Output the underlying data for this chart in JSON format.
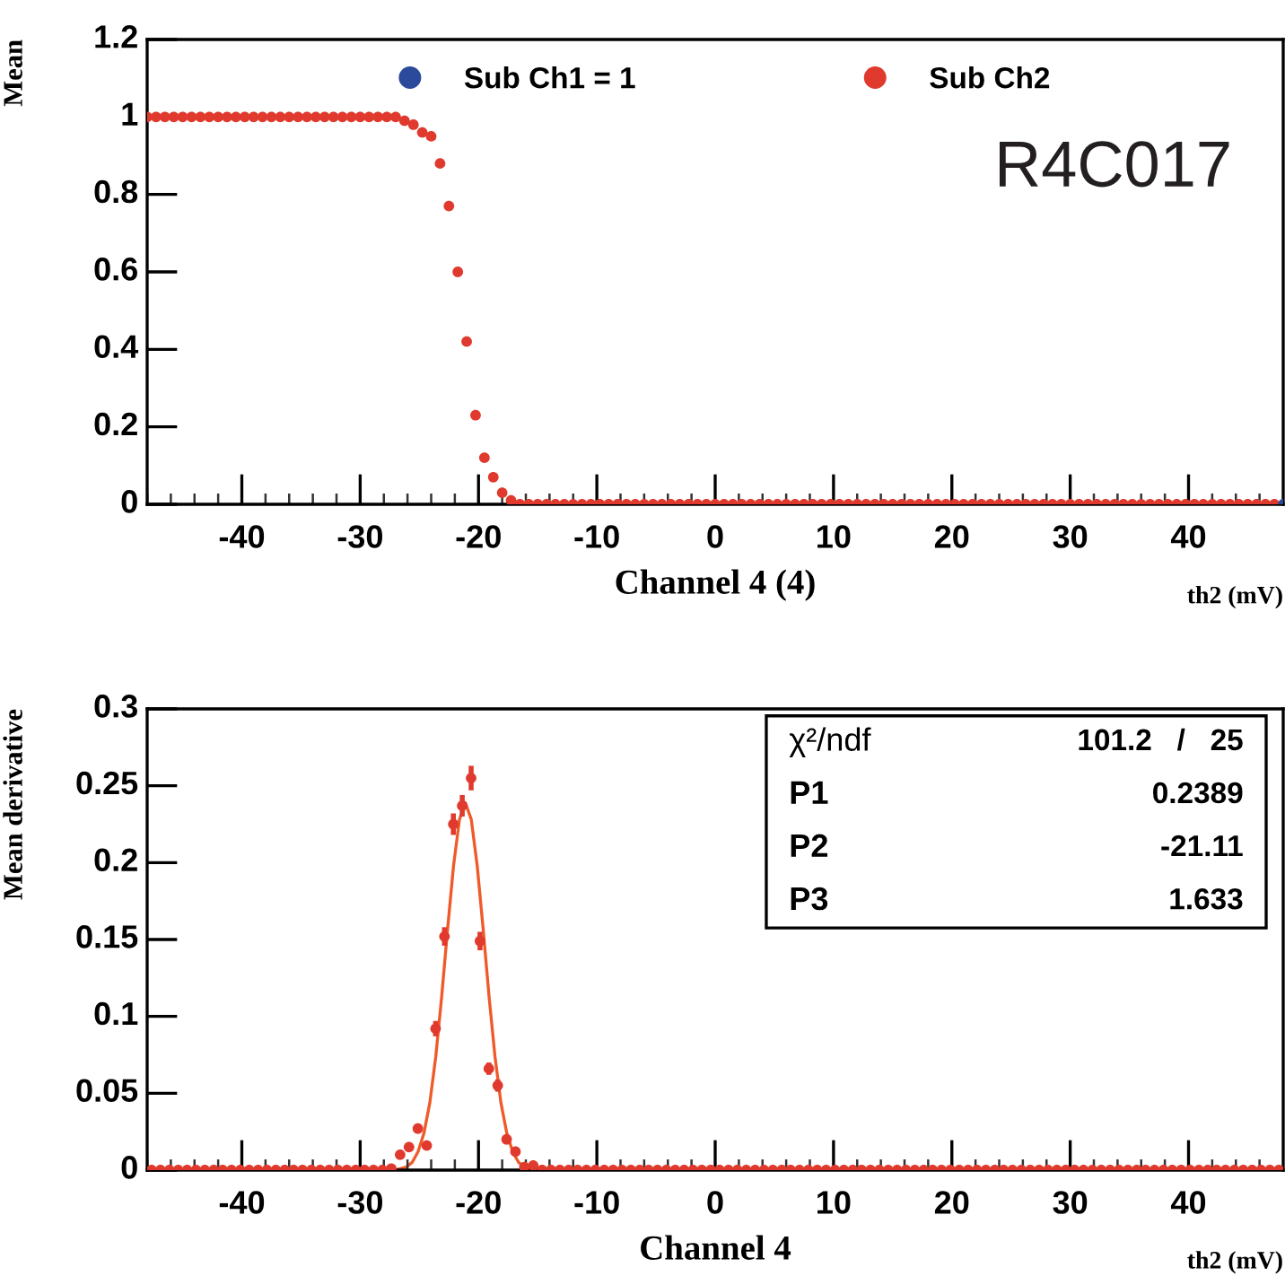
{
  "chart_data": [
    {
      "type": "scatter",
      "xlabel": "Channel 4 (4)",
      "ylabel": "Mean",
      "annotations": [
        "R4C017",
        "th2 (mV)"
      ],
      "xlim": [
        -48,
        48
      ],
      "xticks": [
        -40,
        -30,
        -20,
        -10,
        0,
        10,
        20,
        30,
        40
      ],
      "ylim": [
        0,
        1.2
      ],
      "yticks": [
        0,
        0.2,
        0.4,
        0.6,
        0.8,
        1,
        1.2
      ],
      "legend": "top",
      "marker": "circle",
      "grid": false,
      "series": [
        {
          "name": "Sub Ch2",
          "color": "#e03a2e",
          "x": [
            -48,
            -47.25,
            -46.5,
            -45.75,
            -45,
            -44.25,
            -43.5,
            -42.75,
            -42,
            -41.25,
            -40.5,
            -39.75,
            -39,
            -38.25,
            -37.5,
            -36.75,
            -36,
            -35.25,
            -34.5,
            -33.75,
            -33,
            -32.25,
            -31.5,
            -30.75,
            -30,
            -29.25,
            -28.5,
            -27.75,
            -27,
            -26.25,
            -25.5,
            -24.75,
            -24,
            -23.25,
            -22.5,
            -21.75,
            -21,
            -20.25,
            -19.5,
            -18.75,
            -18,
            -17.25,
            -16.5,
            -15.75,
            -15,
            -14.25,
            -13.5,
            -12.75,
            -12,
            -11.25,
            -10.5,
            -9.75,
            -9,
            -8.25,
            -7.5,
            -6.75,
            -6,
            -5.25,
            -4.5,
            -3.75,
            -3,
            -2.25,
            -1.5,
            -0.75,
            0,
            0.75,
            1.5,
            2.25,
            3,
            3.75,
            4.5,
            5.25,
            6,
            6.75,
            7.5,
            8.25,
            9,
            9.75,
            10.5,
            11.25,
            12,
            12.75,
            13.5,
            14.25,
            15,
            15.75,
            16.5,
            17.25,
            18,
            18.75,
            19.5,
            20.25,
            21,
            21.75,
            22.5,
            23.25,
            24,
            24.75,
            25.5,
            26.25,
            27,
            27.75,
            28.5,
            29.25,
            30,
            30.75,
            31.5,
            32.25,
            33,
            33.75,
            34.5,
            35.25,
            36,
            36.75,
            37.5,
            38.25,
            39,
            39.75,
            40.5,
            41.25,
            42,
            42.75,
            43.5,
            44.25,
            45,
            45.75,
            46.5,
            47.25
          ],
          "values": [
            1,
            1,
            1,
            1,
            1,
            1,
            1,
            1,
            1,
            1,
            1,
            1,
            1,
            1,
            1,
            1,
            1,
            1,
            1,
            1,
            1,
            1,
            1,
            1,
            1,
            1,
            1,
            1,
            1,
            0.99,
            0.98,
            0.96,
            0.95,
            0.88,
            0.77,
            0.6,
            0.42,
            0.23,
            0.12,
            0.07,
            0.03,
            0.01,
            0,
            0,
            0,
            0,
            0,
            0,
            0,
            0,
            0,
            0,
            0,
            0,
            0,
            0,
            0,
            0,
            0,
            0,
            0,
            0,
            0,
            0,
            0,
            0,
            0,
            0,
            0,
            0,
            0,
            0,
            0,
            0,
            0,
            0,
            0,
            0,
            0,
            0,
            0,
            0,
            0,
            0,
            0,
            0,
            0,
            0,
            0,
            0,
            0,
            0,
            0,
            0,
            0,
            0,
            0,
            0,
            0,
            0,
            0,
            0,
            0,
            0,
            0,
            0,
            0,
            0,
            0,
            0,
            0,
            0,
            0,
            0,
            0,
            0,
            0,
            0,
            0,
            0,
            0,
            0,
            0,
            0,
            0,
            0,
            0,
            0
          ]
        },
        {
          "name": "Sub Ch1 = 1",
          "color": "#2b4a9b",
          "x": [
            48
          ],
          "values": [
            0
          ]
        }
      ]
    },
    {
      "type": "scatter",
      "xlabel": "Channel 4",
      "ylabel": "Mean derivative",
      "annotations": [
        "th2 (mV)",
        "χ²/ndf",
        "101.2   /   25",
        "P1",
        "0.2389",
        "P2",
        "-21.11",
        "P3",
        "1.633"
      ],
      "xlim": [
        -48,
        48
      ],
      "xticks": [
        -40,
        -30,
        -20,
        -10,
        0,
        10,
        20,
        30,
        40
      ],
      "ylim": [
        0,
        0.3
      ],
      "yticks": [
        0,
        0.05,
        0.1,
        0.15,
        0.2,
        0.25,
        0.3
      ],
      "marker": "circle",
      "grid": false,
      "legend": false,
      "series": [
        {
          "color": "#e03a2e",
          "x": [
            -47.625,
            -46.875,
            -46.125,
            -45.375,
            -44.625,
            -43.875,
            -43.125,
            -42.375,
            -41.625,
            -40.875,
            -40.125,
            -39.375,
            -38.625,
            -37.875,
            -37.125,
            -36.375,
            -35.625,
            -34.875,
            -34.125,
            -33.375,
            -32.625,
            -31.875,
            -31.125,
            -30.375,
            -29.625,
            -28.875,
            -28.125,
            -27.375,
            -26.625,
            -25.875,
            -25.125,
            -24.375,
            -23.625,
            -22.875,
            -22.125,
            -21.375,
            -20.625,
            -19.875,
            -19.125,
            -18.375,
            -17.625,
            -16.875,
            -16.125,
            -15.375,
            -14.625,
            -13.875,
            -13.125,
            -12.375,
            -11.625,
            -10.875,
            -10.125,
            -9.375,
            -8.625,
            -7.875,
            -7.125,
            -6.375,
            -5.625,
            -4.875,
            -4.125,
            -3.375,
            -2.625,
            -1.875,
            -1.125,
            -0.375,
            0.375,
            1.125,
            1.875,
            2.625,
            3.375,
            4.125,
            4.875,
            5.625,
            6.375,
            7.125,
            7.875,
            8.625,
            9.375,
            10.125,
            10.875,
            11.625,
            12.375,
            13.125,
            13.875,
            14.625,
            15.375,
            16.125,
            16.875,
            17.625,
            18.375,
            19.125,
            19.875,
            20.625,
            21.375,
            22.125,
            22.875,
            23.625,
            24.375,
            25.125,
            25.875,
            26.625,
            27.375,
            28.125,
            28.875,
            29.625,
            30.375,
            31.125,
            31.875,
            32.625,
            33.375,
            34.125,
            34.875,
            35.625,
            36.375,
            37.125,
            37.875,
            38.625,
            39.375,
            40.125,
            40.875,
            41.625,
            42.375,
            43.125,
            43.875,
            44.625,
            45.375,
            46.125,
            46.875,
            47.625
          ],
          "values": [
            0,
            0,
            0,
            0,
            0,
            0,
            0,
            0,
            0,
            0,
            0,
            0,
            0,
            0,
            0,
            0,
            0,
            0,
            0,
            0,
            0,
            0,
            0,
            0,
            0,
            0,
            0,
            0.001,
            0.01,
            0.015,
            0.027,
            0.016,
            0.092,
            0.152,
            0.225,
            0.237,
            0.255,
            0.149,
            0.066,
            0.055,
            0.02,
            0.012,
            0.002,
            0.003,
            0,
            0,
            0,
            0,
            0,
            0,
            0,
            0,
            0,
            0,
            0,
            0,
            0,
            0,
            0,
            0,
            0,
            0,
            0,
            0,
            0,
            0,
            0,
            0,
            0,
            0,
            0,
            0,
            0,
            0,
            0,
            0,
            0,
            0,
            0,
            0,
            0,
            0,
            0,
            0,
            0,
            0,
            0,
            0,
            0,
            0,
            0,
            0,
            0,
            0,
            0,
            0,
            0,
            0,
            0,
            0,
            0,
            0,
            0,
            0,
            0,
            0,
            0,
            0,
            0,
            0,
            0,
            0,
            0,
            0,
            0,
            0,
            0,
            0,
            0,
            0,
            0,
            0,
            0,
            0,
            0,
            0,
            0,
            0
          ],
          "errors": [
            null,
            null,
            null,
            null,
            null,
            null,
            null,
            null,
            null,
            null,
            null,
            null,
            null,
            null,
            null,
            null,
            null,
            null,
            null,
            null,
            null,
            null,
            null,
            null,
            null,
            null,
            null,
            null,
            null,
            null,
            null,
            null,
            0.005,
            0.006,
            0.007,
            0.007,
            0.008,
            0.006,
            0.004,
            0.004,
            null,
            null,
            null,
            null,
            null,
            null,
            null,
            null,
            null,
            null,
            null,
            null,
            null,
            null,
            null,
            null,
            null,
            null,
            null,
            null,
            null,
            null,
            null,
            null,
            null,
            null,
            null,
            null,
            null,
            null,
            null,
            null,
            null,
            null,
            null,
            null,
            null,
            null,
            null,
            null,
            null,
            null,
            null,
            null,
            null,
            null,
            null,
            null,
            null,
            null,
            null,
            null,
            null,
            null,
            null,
            null,
            null,
            null,
            null,
            null,
            null,
            null,
            null,
            null,
            null,
            null,
            null,
            null,
            null,
            null,
            null,
            null,
            null,
            null,
            null,
            null,
            null,
            null,
            null,
            null,
            null,
            null,
            null,
            null,
            null,
            null,
            null,
            null
          ]
        },
        {
          "type": "line",
          "color": "#f05a28",
          "marker": "none",
          "x": [
            -28.11,
            -27.11,
            -26.61,
            -26.11,
            -25.61,
            -25.11,
            -24.61,
            -24.11,
            -23.61,
            -23.11,
            -22.61,
            -22.11,
            -21.61,
            -21.11,
            -20.61,
            -20.11,
            -19.61,
            -19.11,
            -18.61,
            -18.11,
            -17.61,
            -17.11,
            -16.61,
            -16.11,
            -15.11,
            -14.11
          ],
          "values": [
            0,
            0,
            0.001,
            0.002,
            0.005,
            0.012,
            0.024,
            0.044,
            0.074,
            0.113,
            0.157,
            0.198,
            0.228,
            0.239,
            0.228,
            0.198,
            0.157,
            0.113,
            0.074,
            0.044,
            0.024,
            0.012,
            0.005,
            0.002,
            0,
            0
          ]
        }
      ]
    }
  ]
}
